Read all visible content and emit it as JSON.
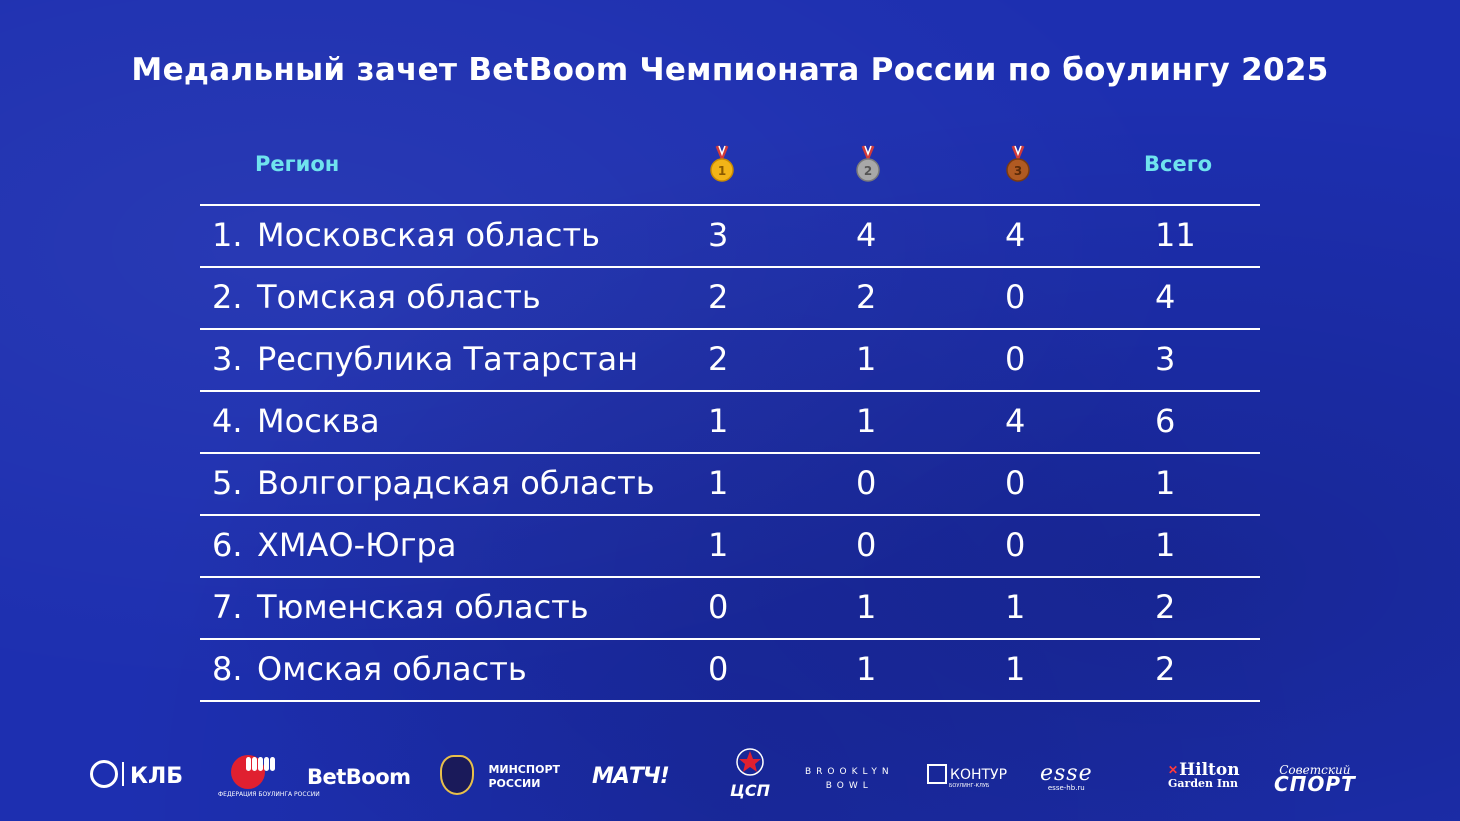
{
  "title": "Медальный зачет BetBoom Чемпионата России по боулингу 2025",
  "header": {
    "region": "Регион",
    "gold_medal_num": "1",
    "silver_medal_num": "2",
    "bronze_medal_num": "3",
    "total": "Всего"
  },
  "rows": [
    {
      "rank": "1.",
      "name": "Московская область",
      "gold": "3",
      "silver": "4",
      "bronze": "4",
      "total": "11"
    },
    {
      "rank": "2.",
      "name": "Томская область",
      "gold": "2",
      "silver": "2",
      "bronze": "0",
      "total": "4"
    },
    {
      "rank": "3.",
      "name": "Республика Татарстан",
      "gold": "2",
      "silver": "1",
      "bronze": "0",
      "total": "3"
    },
    {
      "rank": "4.",
      "name": "Москва",
      "gold": "1",
      "silver": "1",
      "bronze": "4",
      "total": "6"
    },
    {
      "rank": "5.",
      "name": "Волгоградская область",
      "gold": "1",
      "silver": "0",
      "bronze": "0",
      "total": "1"
    },
    {
      "rank": "6.",
      "name": "ХМАО-Югра",
      "gold": "1",
      "silver": "0",
      "bronze": "0",
      "total": "1"
    },
    {
      "rank": "7.",
      "name": "Тюменская область",
      "gold": "0",
      "silver": "1",
      "bronze": "1",
      "total": "2"
    },
    {
      "rank": "8.",
      "name": "Омская область",
      "gold": "0",
      "silver": "1",
      "bronze": "1",
      "total": "2"
    }
  ],
  "sponsors": {
    "klb": "КЛБ",
    "fbr": "ФЕДЕРАЦИЯ БОУЛИНГА РОССИИ",
    "betboom": "BetBoom",
    "minsport_line1": "МИНСПОРТ",
    "minsport_line2": "РОССИИ",
    "match": "МАТЧ!",
    "csp": "ЦСП",
    "brooklyn_line1": "BROOKLYN",
    "brooklyn_line2": "BOWL",
    "kontur": "КОНТУР",
    "kontur_sub": "БОУЛИНГ-КЛУБ",
    "esse": "esse",
    "esse_sub": "esse-hb.ru",
    "hilton_main": "Hilton",
    "hilton_sub": "Garden Inn",
    "sovsport_top": "Советский",
    "sovsport_main": "СПОРТ"
  },
  "colors": {
    "background": "#1d2fb0",
    "header_accent": "#6fe3ee",
    "gold": "#f2b418",
    "silver": "#a8a8a8",
    "bronze": "#b05a22"
  }
}
